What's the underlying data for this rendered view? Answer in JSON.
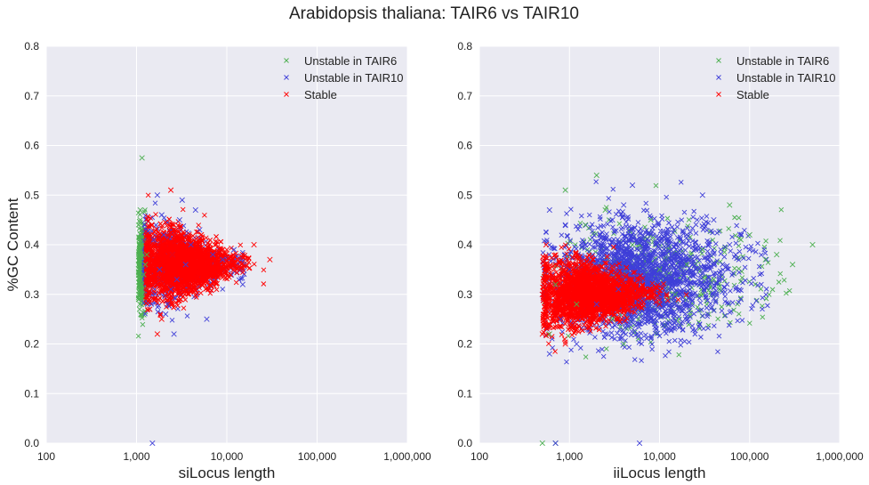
{
  "figure": {
    "title": "Arabidopsis thaliana: TAIR6 vs TAIR10",
    "background_color": "#eaeaf2",
    "grid_color": "#ffffff"
  },
  "chart_data": [
    {
      "type": "scatter",
      "xscale": "log",
      "xlim": [
        100,
        1000000
      ],
      "ylim": [
        0.0,
        0.8
      ],
      "xticks": [
        100,
        1000,
        10000,
        100000,
        1000000
      ],
      "xtick_labels": [
        "100",
        "1,000",
        "10,000",
        "100,000",
        "1,000,000"
      ],
      "yticks": [
        0.0,
        0.1,
        0.2,
        0.3,
        0.4,
        0.5,
        0.6,
        0.7,
        0.8
      ],
      "ytick_labels": [
        "0.0",
        "0.1",
        "0.2",
        "0.3",
        "0.4",
        "0.5",
        "0.6",
        "0.7",
        "0.8"
      ],
      "xlabel": "siLocus length",
      "ylabel": "%GC Content",
      "grid": true,
      "legend": "top-right",
      "marker": "x",
      "series": [
        {
          "name": "Unstable in TAIR6",
          "color": "#4caf50",
          "points": [
            [
              1050,
              0.36
            ],
            [
              1080,
              0.33
            ],
            [
              1100,
              0.38
            ],
            [
              1060,
              0.3
            ],
            [
              1120,
              0.42
            ],
            [
              1090,
              0.28
            ],
            [
              1070,
              0.35
            ],
            [
              1110,
              0.4
            ],
            [
              1130,
              0.32
            ],
            [
              1100,
              0.45
            ],
            [
              1150,
              0.575
            ],
            [
              1080,
              0.37
            ],
            [
              1200,
              0.34
            ],
            [
              1060,
              0.29
            ],
            [
              1140,
              0.43
            ],
            [
              1100,
              0.31
            ],
            [
              1090,
              0.39
            ],
            [
              1120,
              0.26
            ],
            [
              1250,
              0.36
            ],
            [
              1070,
              0.41
            ],
            [
              1160,
              0.3
            ],
            [
              1100,
              0.47
            ],
            [
              1300,
              0.38
            ],
            [
              1080,
              0.27
            ],
            [
              1110,
              0.33
            ]
          ]
        },
        {
          "name": "Unstable in TAIR10",
          "color": "#3f3fd8",
          "points": [
            [
              1500,
              0.0
            ],
            [
              1800,
              0.35
            ],
            [
              2000,
              0.42
            ],
            [
              2500,
              0.38
            ],
            [
              1600,
              0.3
            ],
            [
              3000,
              0.45
            ],
            [
              2200,
              0.28
            ],
            [
              4000,
              0.4
            ],
            [
              1700,
              0.5
            ],
            [
              2800,
              0.33
            ],
            [
              3500,
              0.36
            ],
            [
              5000,
              0.43
            ],
            [
              6000,
              0.25
            ],
            [
              1900,
              0.46
            ],
            [
              2400,
              0.31
            ],
            [
              7000,
              0.38
            ],
            [
              1400,
              0.27
            ],
            [
              3200,
              0.49
            ],
            [
              9000,
              0.37
            ],
            [
              15000,
              0.32
            ],
            [
              12000,
              0.39
            ],
            [
              2600,
              0.22
            ],
            [
              4500,
              0.47
            ],
            [
              1550,
              0.41
            ],
            [
              2100,
              0.26
            ]
          ]
        },
        {
          "name": "Stable",
          "color": "#ff0000",
          "points": [
            [
              1500,
              0.35
            ],
            [
              2000,
              0.37
            ],
            [
              2500,
              0.38
            ],
            [
              3000,
              0.36
            ],
            [
              1800,
              0.33
            ],
            [
              4000,
              0.39
            ],
            [
              5000,
              0.38
            ],
            [
              2200,
              0.31
            ],
            [
              3500,
              0.4
            ],
            [
              1600,
              0.29
            ],
            [
              6000,
              0.37
            ],
            [
              8000,
              0.38
            ],
            [
              2800,
              0.34
            ],
            [
              1400,
              0.27
            ],
            [
              10000,
              0.39
            ],
            [
              15000,
              0.38
            ],
            [
              20000,
              0.4
            ],
            [
              30000,
              0.37
            ],
            [
              2600,
              0.44
            ],
            [
              3200,
              0.42
            ],
            [
              1900,
              0.25
            ],
            [
              4500,
              0.33
            ],
            [
              2400,
              0.51
            ],
            [
              1700,
              0.22
            ],
            [
              12000,
              0.36
            ]
          ]
        }
      ]
    },
    {
      "type": "scatter",
      "xscale": "log",
      "xlim": [
        100,
        1000000
      ],
      "ylim": [
        0.0,
        0.8
      ],
      "xticks": [
        100,
        1000,
        10000,
        100000,
        1000000
      ],
      "xtick_labels": [
        "100",
        "1,000",
        "10,000",
        "100,000",
        "1,000,000"
      ],
      "yticks": [
        0.0,
        0.1,
        0.2,
        0.3,
        0.4,
        0.5,
        0.6,
        0.7,
        0.8
      ],
      "ytick_labels": [
        "0.0",
        "0.1",
        "0.2",
        "0.3",
        "0.4",
        "0.5",
        "0.6",
        "0.7",
        "0.8"
      ],
      "xlabel": "iiLocus length",
      "ylabel": "",
      "grid": true,
      "legend": "top-right",
      "marker": "x",
      "series": [
        {
          "name": "Unstable in TAIR6",
          "color": "#4caf50",
          "points": [
            [
              500,
              0.0
            ],
            [
              700,
              0.32
            ],
            [
              900,
              0.51
            ],
            [
              2000,
              0.54
            ],
            [
              5000,
              0.4
            ],
            [
              20000,
              0.36
            ],
            [
              60000,
              0.48
            ],
            [
              100000,
              0.42
            ],
            [
              200000,
              0.38
            ],
            [
              500000,
              0.4
            ],
            [
              3000,
              0.25
            ],
            [
              8000,
              0.45
            ],
            [
              40000,
              0.33
            ],
            [
              150000,
              0.37
            ],
            [
              1200,
              0.28
            ],
            [
              15000,
              0.3
            ],
            [
              300000,
              0.36
            ],
            [
              600,
              0.22
            ],
            [
              2500,
              0.47
            ],
            [
              80000,
              0.41
            ],
            [
              10000,
              0.35
            ],
            [
              30000,
              0.39
            ],
            [
              700,
              0.0
            ],
            [
              4000,
              0.2
            ],
            [
              1500,
              0.44
            ]
          ]
        },
        {
          "name": "Unstable in TAIR10",
          "color": "#3f3fd8",
          "points": [
            [
              700,
              0.0
            ],
            [
              6000,
              0.0
            ],
            [
              500,
              0.3
            ],
            [
              800,
              0.25
            ],
            [
              1000,
              0.35
            ],
            [
              1500,
              0.4
            ],
            [
              2000,
              0.28
            ],
            [
              3000,
              0.45
            ],
            [
              5000,
              0.52
            ],
            [
              8000,
              0.38
            ],
            [
              12000,
              0.33
            ],
            [
              20000,
              0.42
            ],
            [
              30000,
              0.5
            ],
            [
              50000,
              0.36
            ],
            [
              80000,
              0.29
            ],
            [
              600,
              0.18
            ],
            [
              900,
              0.44
            ],
            [
              2500,
              0.22
            ],
            [
              4000,
              0.48
            ],
            [
              10000,
              0.27
            ],
            [
              15000,
              0.4
            ],
            [
              25000,
              0.34
            ],
            [
              40000,
              0.45
            ],
            [
              70000,
              0.38
            ],
            [
              1200,
              0.2
            ],
            [
              600,
              0.47
            ],
            [
              3500,
              0.31
            ],
            [
              60000,
              0.4
            ],
            [
              100000,
              0.39
            ],
            [
              18000,
              0.36
            ]
          ]
        },
        {
          "name": "Stable",
          "color": "#ff0000",
          "points": [
            [
              500,
              0.3
            ],
            [
              700,
              0.28
            ],
            [
              1000,
              0.32
            ],
            [
              1500,
              0.29
            ],
            [
              2000,
              0.31
            ],
            [
              3000,
              0.3
            ],
            [
              5000,
              0.29
            ],
            [
              8000,
              0.31
            ],
            [
              12000,
              0.3
            ],
            [
              600,
              0.24
            ],
            [
              800,
              0.36
            ],
            [
              1200,
              0.26
            ],
            [
              2500,
              0.34
            ],
            [
              4000,
              0.27
            ],
            [
              6000,
              0.33
            ],
            [
              10000,
              0.28
            ],
            [
              550,
              0.4
            ],
            [
              900,
              0.2
            ],
            [
              1800,
              0.37
            ],
            [
              3500,
              0.25
            ],
            [
              650,
              0.33
            ],
            [
              1100,
              0.35
            ],
            [
              2200,
              0.27
            ],
            [
              7000,
              0.3
            ],
            [
              500,
              0.22
            ]
          ]
        }
      ]
    }
  ]
}
